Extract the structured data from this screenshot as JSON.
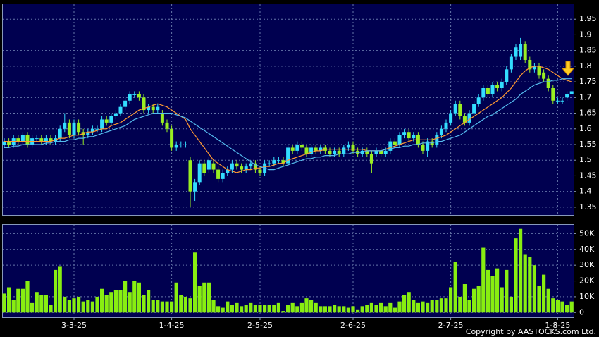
{
  "chart_data": [
    {
      "type": "candlestick",
      "categories": [
        null,
        null,
        null,
        null,
        null,
        null,
        null,
        null,
        null,
        null,
        null,
        null,
        null,
        null,
        null,
        "3-3-25",
        null,
        null,
        null,
        null,
        null,
        null,
        null,
        null,
        null,
        null,
        null,
        null,
        null,
        null,
        null,
        null,
        null,
        null,
        null,
        null,
        "1-4-25",
        null,
        null,
        null,
        null,
        null,
        null,
        null,
        null,
        null,
        null,
        null,
        null,
        null,
        null,
        null,
        null,
        null,
        null,
        "2-5-25",
        null,
        null,
        null,
        null,
        null,
        null,
        null,
        null,
        null,
        null,
        null,
        null,
        null,
        null,
        null,
        null,
        null,
        null,
        null,
        "2-6-25",
        null,
        null,
        null,
        null,
        null,
        null,
        null,
        null,
        null,
        null,
        null,
        null,
        null,
        null,
        null,
        null,
        null,
        null,
        null,
        null,
        "2-7-25",
        null,
        null,
        null,
        null,
        null,
        null,
        null,
        null,
        null,
        null,
        null,
        null,
        null,
        null,
        null,
        null,
        null,
        null,
        null,
        null,
        null,
        null,
        "1-8-25",
        null,
        null,
        null
      ],
      "open": [
        1.55,
        1.56,
        1.55,
        1.57,
        1.56,
        1.58,
        1.55,
        1.57,
        1.57,
        1.56,
        1.57,
        1.56,
        1.57,
        1.6,
        1.62,
        1.58,
        1.62,
        1.59,
        1.58,
        1.59,
        1.6,
        1.6,
        1.63,
        1.62,
        1.64,
        1.65,
        1.67,
        1.69,
        1.71,
        1.71,
        1.7,
        1.66,
        1.67,
        1.66,
        1.65,
        1.62,
        1.6,
        1.54,
        1.55,
        1.55,
        1.5,
        1.4,
        1.43,
        1.49,
        1.47,
        1.49,
        1.47,
        1.44,
        1.46,
        1.47,
        1.49,
        1.48,
        1.47,
        1.48,
        1.49,
        1.47,
        1.46,
        1.49,
        1.49,
        1.5,
        1.5,
        1.49,
        1.54,
        1.53,
        1.55,
        1.54,
        1.52,
        1.54,
        1.53,
        1.54,
        1.53,
        1.52,
        1.53,
        1.52,
        1.54,
        1.55,
        1.53,
        1.52,
        1.53,
        1.52,
        1.52,
        1.53,
        1.52,
        1.53,
        1.56,
        1.55,
        1.58,
        1.59,
        1.57,
        1.58,
        1.55,
        1.53,
        1.56,
        1.55,
        1.58,
        1.6,
        1.62,
        1.65,
        1.68,
        1.64,
        1.62,
        1.65,
        1.68,
        1.7,
        1.73,
        1.71,
        1.74,
        1.73,
        1.75,
        1.79,
        1.83,
        1.83,
        1.87,
        1.82,
        1.79,
        1.8,
        1.78,
        1.76,
        1.73,
        1.69,
        1.69,
        1.7,
        1.71
      ],
      "high": [
        1.57,
        1.57,
        1.58,
        1.58,
        1.59,
        1.59,
        1.58,
        1.58,
        1.58,
        1.58,
        1.58,
        1.58,
        1.61,
        1.65,
        1.63,
        1.63,
        1.63,
        1.6,
        1.6,
        1.61,
        1.61,
        1.64,
        1.64,
        1.65,
        1.66,
        1.68,
        1.7,
        1.72,
        1.72,
        1.72,
        1.71,
        1.68,
        1.68,
        1.68,
        1.66,
        1.63,
        1.61,
        1.56,
        1.56,
        1.56,
        1.51,
        1.44,
        1.5,
        1.5,
        1.51,
        1.5,
        1.48,
        1.47,
        1.48,
        1.5,
        1.5,
        1.49,
        1.49,
        1.5,
        1.5,
        1.48,
        1.5,
        1.5,
        1.51,
        1.51,
        1.51,
        1.55,
        1.55,
        1.56,
        1.56,
        1.55,
        1.55,
        1.55,
        1.55,
        1.55,
        1.54,
        1.54,
        1.54,
        1.55,
        1.56,
        1.56,
        1.54,
        1.54,
        1.54,
        1.53,
        1.54,
        1.54,
        1.54,
        1.57,
        1.57,
        1.59,
        1.6,
        1.6,
        1.59,
        1.59,
        1.56,
        1.57,
        1.57,
        1.59,
        1.61,
        1.63,
        1.66,
        1.69,
        1.69,
        1.65,
        1.66,
        1.69,
        1.71,
        1.74,
        1.74,
        1.75,
        1.75,
        1.76,
        1.8,
        1.84,
        1.87,
        1.89,
        1.88,
        1.83,
        1.81,
        1.81,
        1.79,
        1.77,
        1.74,
        1.7,
        1.7,
        1.72,
        1.72
      ],
      "low": [
        1.54,
        1.54,
        1.54,
        1.55,
        1.55,
        1.54,
        1.54,
        1.56,
        1.55,
        1.55,
        1.55,
        1.55,
        1.56,
        1.59,
        1.57,
        1.57,
        1.58,
        1.55,
        1.57,
        1.58,
        1.59,
        1.59,
        1.61,
        1.61,
        1.63,
        1.64,
        1.66,
        1.68,
        1.7,
        1.69,
        1.65,
        1.65,
        1.65,
        1.65,
        1.61,
        1.59,
        1.53,
        1.53,
        1.54,
        1.54,
        1.35,
        1.37,
        1.42,
        1.45,
        1.46,
        1.46,
        1.43,
        1.43,
        1.45,
        1.46,
        1.47,
        1.46,
        1.46,
        1.47,
        1.46,
        1.45,
        1.45,
        1.48,
        1.48,
        1.49,
        1.48,
        1.48,
        1.52,
        1.52,
        1.53,
        1.51,
        1.51,
        1.52,
        1.52,
        1.52,
        1.51,
        1.51,
        1.51,
        1.51,
        1.53,
        1.52,
        1.51,
        1.51,
        1.51,
        1.46,
        1.51,
        1.51,
        1.51,
        1.52,
        1.54,
        1.54,
        1.57,
        1.56,
        1.56,
        1.54,
        1.52,
        1.51,
        1.54,
        1.54,
        1.57,
        1.59,
        1.61,
        1.64,
        1.63,
        1.61,
        1.61,
        1.64,
        1.67,
        1.69,
        1.7,
        1.7,
        1.72,
        1.72,
        1.74,
        1.78,
        1.82,
        1.82,
        1.81,
        1.78,
        1.78,
        1.76,
        1.75,
        1.72,
        1.68,
        1.68,
        1.68,
        1.69,
        1.71
      ],
      "close": [
        1.56,
        1.55,
        1.57,
        1.56,
        1.58,
        1.55,
        1.57,
        1.57,
        1.56,
        1.57,
        1.56,
        1.57,
        1.6,
        1.62,
        1.58,
        1.62,
        1.59,
        1.58,
        1.59,
        1.6,
        1.6,
        1.63,
        1.62,
        1.64,
        1.65,
        1.67,
        1.69,
        1.71,
        1.71,
        1.7,
        1.66,
        1.67,
        1.66,
        1.67,
        1.62,
        1.6,
        1.54,
        1.55,
        1.55,
        1.55,
        1.4,
        1.43,
        1.49,
        1.46,
        1.5,
        1.47,
        1.44,
        1.46,
        1.47,
        1.49,
        1.48,
        1.47,
        1.48,
        1.49,
        1.47,
        1.46,
        1.49,
        1.49,
        1.5,
        1.5,
        1.49,
        1.54,
        1.53,
        1.55,
        1.54,
        1.52,
        1.54,
        1.53,
        1.54,
        1.53,
        1.52,
        1.53,
        1.52,
        1.54,
        1.55,
        1.53,
        1.52,
        1.53,
        1.52,
        1.49,
        1.53,
        1.52,
        1.53,
        1.56,
        1.55,
        1.58,
        1.59,
        1.57,
        1.58,
        1.55,
        1.53,
        1.56,
        1.55,
        1.58,
        1.6,
        1.62,
        1.65,
        1.68,
        1.64,
        1.62,
        1.65,
        1.68,
        1.7,
        1.73,
        1.71,
        1.74,
        1.73,
        1.75,
        1.79,
        1.83,
        1.86,
        1.87,
        1.82,
        1.79,
        1.8,
        1.77,
        1.76,
        1.73,
        1.69,
        1.69,
        1.69,
        1.71,
        1.72
      ],
      "up_color": "#33ddff",
      "down_color": "#99ee22",
      "series": [
        {
          "color": "#ff9933",
          "values": [
            1.56,
            1.56,
            1.56,
            1.56,
            1.56,
            1.56,
            1.56,
            1.56,
            1.56,
            1.56,
            1.56,
            1.565,
            1.57,
            1.57,
            1.575,
            1.58,
            1.58,
            1.585,
            1.59,
            1.59,
            1.595,
            1.6,
            1.6,
            1.61,
            1.615,
            1.62,
            1.63,
            1.64,
            1.65,
            1.66,
            1.665,
            1.67,
            1.675,
            1.68,
            1.675,
            1.67,
            1.66,
            1.65,
            1.64,
            1.63,
            1.6,
            1.58,
            1.56,
            1.54,
            1.52,
            1.5,
            1.49,
            1.48,
            1.47,
            1.465,
            1.46,
            1.465,
            1.47,
            1.47,
            1.475,
            1.475,
            1.48,
            1.48,
            1.485,
            1.49,
            1.49,
            1.5,
            1.505,
            1.51,
            1.515,
            1.52,
            1.525,
            1.53,
            1.53,
            1.535,
            1.535,
            1.535,
            1.535,
            1.535,
            1.535,
            1.535,
            1.535,
            1.535,
            1.53,
            1.53,
            1.53,
            1.53,
            1.535,
            1.54,
            1.545,
            1.55,
            1.555,
            1.56,
            1.565,
            1.565,
            1.565,
            1.565,
            1.565,
            1.57,
            1.575,
            1.58,
            1.59,
            1.6,
            1.61,
            1.62,
            1.63,
            1.64,
            1.65,
            1.66,
            1.67,
            1.68,
            1.69,
            1.7,
            1.715,
            1.73,
            1.75,
            1.77,
            1.785,
            1.795,
            1.8,
            1.8,
            1.795,
            1.79,
            1.78,
            1.77,
            1.76,
            1.755,
            1.75
          ]
        },
        {
          "color": "#55bbee",
          "values": [
            1.54,
            1.54,
            1.545,
            1.545,
            1.55,
            1.55,
            1.55,
            1.55,
            1.55,
            1.555,
            1.555,
            1.56,
            1.56,
            1.56,
            1.565,
            1.565,
            1.57,
            1.57,
            1.575,
            1.575,
            1.58,
            1.585,
            1.59,
            1.595,
            1.6,
            1.605,
            1.61,
            1.62,
            1.63,
            1.635,
            1.64,
            1.645,
            1.65,
            1.65,
            1.65,
            1.65,
            1.65,
            1.645,
            1.64,
            1.635,
            1.625,
            1.615,
            1.605,
            1.595,
            1.585,
            1.575,
            1.565,
            1.555,
            1.545,
            1.535,
            1.525,
            1.515,
            1.505,
            1.495,
            1.485,
            1.48,
            1.475,
            1.47,
            1.47,
            1.475,
            1.48,
            1.485,
            1.49,
            1.495,
            1.5,
            1.505,
            1.505,
            1.51,
            1.51,
            1.515,
            1.515,
            1.515,
            1.52,
            1.52,
            1.52,
            1.525,
            1.525,
            1.525,
            1.53,
            1.53,
            1.53,
            1.53,
            1.535,
            1.535,
            1.54,
            1.54,
            1.545,
            1.545,
            1.55,
            1.55,
            1.555,
            1.555,
            1.555,
            1.56,
            1.56,
            1.565,
            1.57,
            1.575,
            1.58,
            1.59,
            1.6,
            1.61,
            1.62,
            1.63,
            1.64,
            1.645,
            1.655,
            1.665,
            1.675,
            1.685,
            1.695,
            1.71,
            1.72,
            1.73,
            1.74,
            1.745,
            1.75,
            1.75,
            1.755,
            1.755,
            1.76,
            1.76,
            1.76
          ]
        }
      ],
      "ylim": [
        1.325,
        2.0
      ],
      "yticks": [
        1.35,
        1.4,
        1.45,
        1.5,
        1.55,
        1.6,
        1.65,
        1.7,
        1.75,
        1.8,
        1.85,
        1.9,
        1.95
      ],
      "grid": true
    },
    {
      "type": "bar",
      "color": "#88ee11",
      "values": [
        12000,
        16000,
        8000,
        15000,
        15000,
        20000,
        6000,
        13000,
        11000,
        11000,
        5000,
        27000,
        29000,
        10000,
        8000,
        9000,
        10000,
        7000,
        8000,
        7000,
        10000,
        15000,
        11000,
        13000,
        14000,
        14000,
        20000,
        13000,
        20000,
        19000,
        11000,
        14000,
        8000,
        8000,
        7000,
        7000,
        7000,
        19000,
        11000,
        10000,
        9000,
        38000,
        17000,
        19000,
        19000,
        8000,
        4000,
        3000,
        7000,
        5000,
        6000,
        4000,
        5000,
        6000,
        5000,
        5000,
        5000,
        5000,
        5000,
        6000,
        1000,
        5000,
        6000,
        4000,
        6000,
        9000,
        8000,
        6000,
        4000,
        4000,
        4000,
        5000,
        4000,
        4000,
        3000,
        4000,
        2000,
        4000,
        5000,
        6000,
        5000,
        6000,
        4000,
        6000,
        3000,
        7000,
        11000,
        13000,
        8000,
        6000,
        7000,
        6000,
        8000,
        8000,
        9000,
        9000,
        16000,
        32000,
        10000,
        18000,
        8000,
        15000,
        17000,
        41000,
        27000,
        23000,
        28000,
        16000,
        27000,
        10000,
        47000,
        53000,
        37000,
        35000,
        30000,
        17000,
        24000,
        15000,
        9000,
        8000,
        7000,
        5000,
        7000
      ],
      "ylim": [
        -3000,
        56000
      ],
      "yticks": [
        0,
        {
          "value": 10000,
          "label": "10K"
        },
        {
          "value": 20000,
          "label": "20K"
        },
        {
          "value": 30000,
          "label": "30K"
        },
        {
          "value": 40000,
          "label": "40K"
        },
        {
          "value": 50000,
          "label": "50K"
        }
      ],
      "grid": true
    }
  ],
  "copyright": "Copyright by AASTOCKS.com Ltd."
}
